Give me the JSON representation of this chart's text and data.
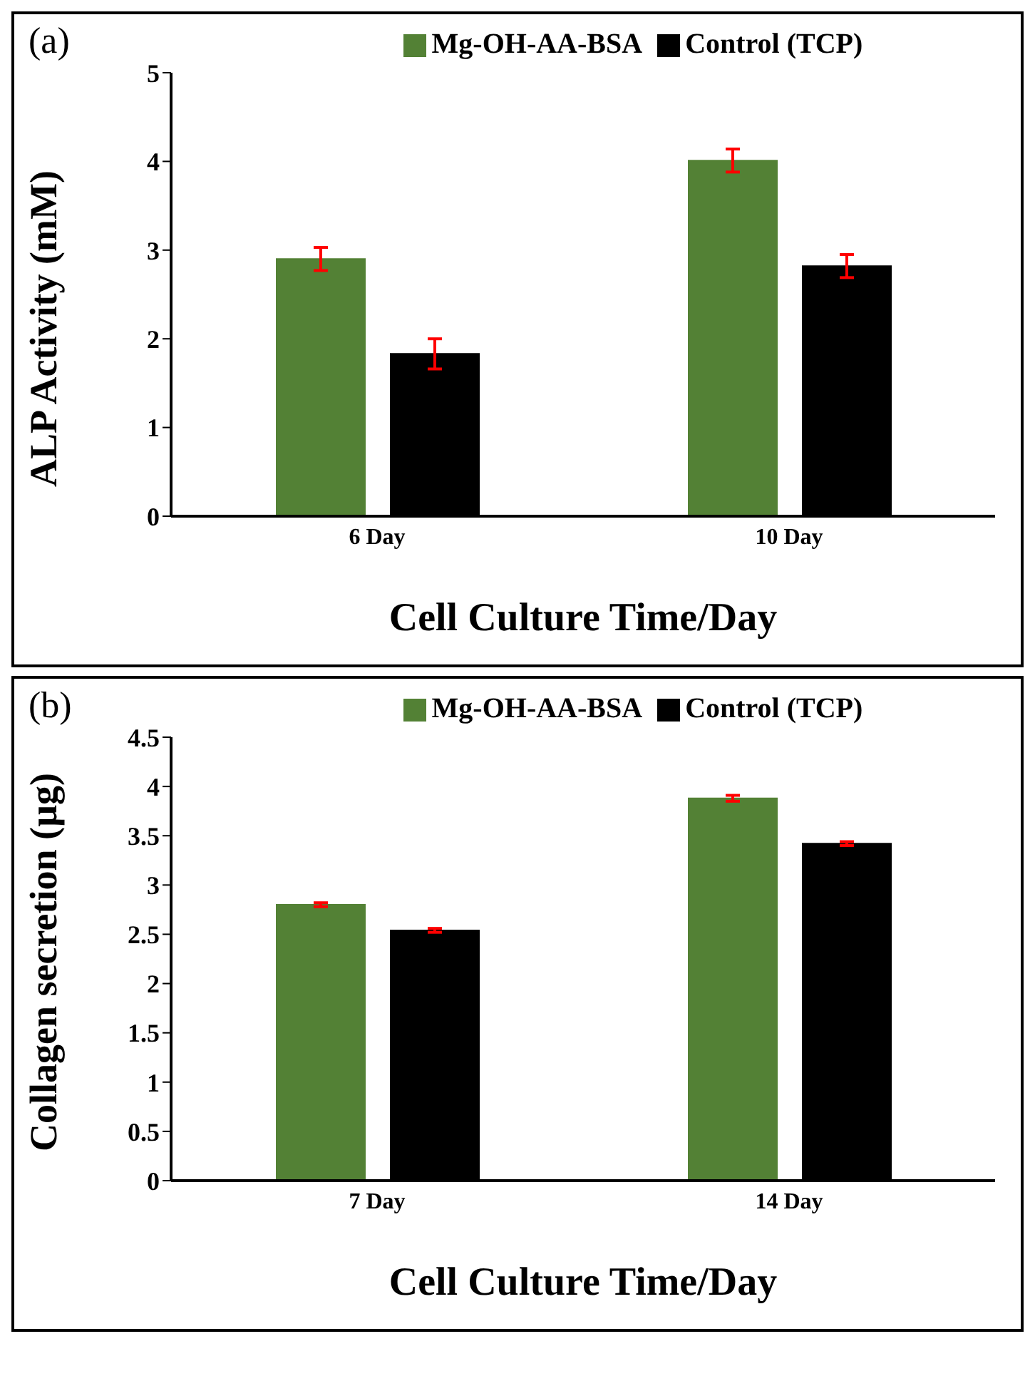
{
  "chart_data": [
    {
      "type": "bar",
      "title": "(a)",
      "xlabel": "Cell Culture Time/Day",
      "ylabel": "ALP Activity (mM)",
      "categories": [
        "6 Day",
        "10 Day"
      ],
      "series": [
        {
          "name": "Mg-OH-AA-BSA",
          "color": "#538135",
          "values": [
            2.9,
            4.01
          ],
          "errors": [
            0.13,
            0.13
          ]
        },
        {
          "name": "Control (TCP)",
          "color": "#000000",
          "values": [
            1.83,
            2.82
          ],
          "errors": [
            0.17,
            0.13
          ]
        }
      ],
      "ylim": [
        0,
        5
      ],
      "yticks": [
        0,
        1,
        2,
        3,
        4,
        5
      ],
      "grid": false,
      "legend": "top"
    },
    {
      "type": "bar",
      "title": "(b)",
      "xlabel": "Cell Culture Time/Day",
      "ylabel": "Collagen secretion (µg)",
      "categories": [
        "7 Day",
        "14 Day"
      ],
      "series": [
        {
          "name": "Mg-OH-AA-BSA",
          "color": "#538135",
          "values": [
            2.8,
            3.88
          ],
          "errors": [
            0.02,
            0.03
          ]
        },
        {
          "name": "Control (TCP)",
          "color": "#000000",
          "values": [
            2.54,
            3.42
          ],
          "errors": [
            0.02,
            0.02
          ]
        }
      ],
      "ylim": [
        0,
        4.5
      ],
      "yticks": [
        0,
        0.5,
        1,
        1.5,
        2,
        2.5,
        3,
        3.5,
        4,
        4.5
      ],
      "grid": false,
      "legend": "top"
    }
  ]
}
